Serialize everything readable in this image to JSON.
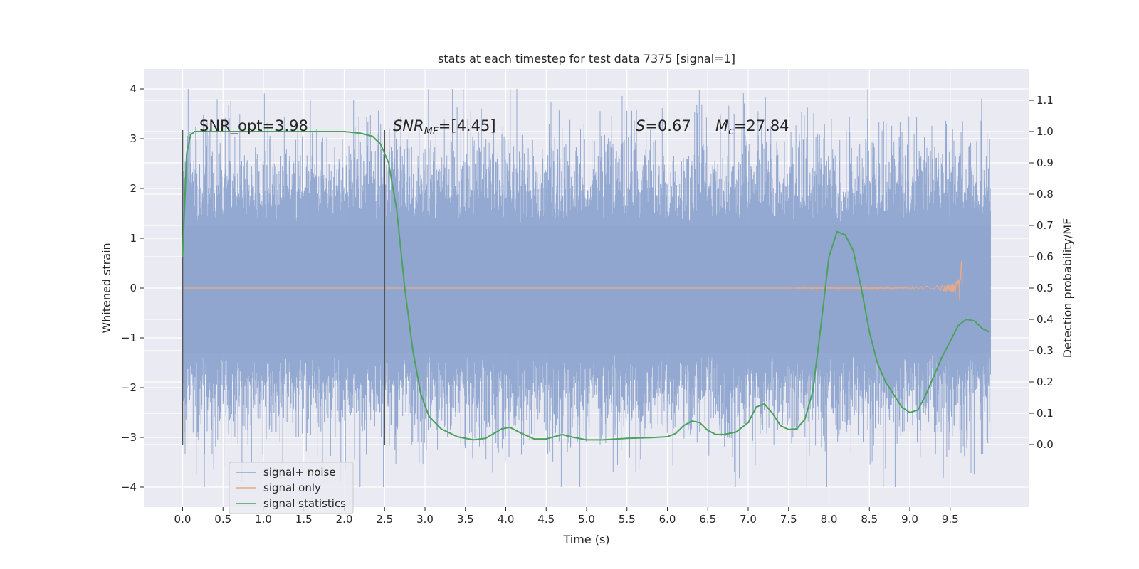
{
  "chart_data": {
    "type": "line",
    "title": "stats at each timestep for test data 7375 [signal=1]",
    "xlabel": "Time (s)",
    "ylabel": "Whitened strain",
    "ylabel_right": "Detection probability/MF",
    "xlim": [
      -0.48,
      10.48
    ],
    "ylim": [
      -4.4,
      4.4
    ],
    "ylim_right": [
      -0.2,
      1.2
    ],
    "x_ticks": [
      "0.0",
      "0.5",
      "1.0",
      "1.5",
      "2.0",
      "2.5",
      "3.0",
      "3.5",
      "4.0",
      "4.5",
      "5.0",
      "5.5",
      "6.0",
      "6.5",
      "7.0",
      "7.5",
      "8.0",
      "8.5",
      "9.0",
      "9.5"
    ],
    "y_ticks": [
      "−4",
      "−3",
      "−2",
      "−1",
      "0",
      "1",
      "2",
      "3",
      "4"
    ],
    "y_ticks_right": [
      "0.0",
      "0.1",
      "0.2",
      "0.3",
      "0.4",
      "0.5",
      "0.6",
      "0.7",
      "0.8",
      "0.9",
      "1.0",
      "1.1"
    ],
    "grid": true,
    "legend_position": "lower-left",
    "annotations": {
      "snr_opt": "SNR_opt=3.98",
      "snr_mf_sym": "SNR",
      "snr_mf_sub": "MF",
      "snr_mf_val": "=[4.45]",
      "s_sym": "S",
      "s_val": "=0.67",
      "mc_sym": "M",
      "mc_sub": "c",
      "mc_val": "=27.84"
    },
    "vlines_x": [
      0.0,
      2.5
    ],
    "series": [
      {
        "name": "signal+ noise",
        "color": "#8fa5cf",
        "x_range": [
          0.0,
          10.0
        ],
        "envelope_core": [
          -1.3,
          1.25
        ],
        "peak_range": [
          -4.0,
          4.0
        ]
      },
      {
        "name": "signal only",
        "color": "#e5a98c",
        "x_range": [
          0.0,
          9.65
        ],
        "peak_amplitude": 1.0,
        "merger_time": 9.65
      },
      {
        "name": "signal statistics",
        "color": "#4aa25b",
        "x": [
          0.0,
          0.05,
          0.1,
          0.15,
          0.2,
          0.3,
          0.5,
          1.0,
          1.5,
          2.0,
          2.2,
          2.35,
          2.45,
          2.55,
          2.65,
          2.75,
          2.85,
          2.95,
          3.05,
          3.2,
          3.4,
          3.6,
          3.75,
          3.85,
          3.95,
          4.05,
          4.2,
          4.35,
          4.5,
          4.6,
          4.7,
          4.8,
          5.0,
          5.2,
          5.5,
          5.8,
          6.0,
          6.1,
          6.2,
          6.3,
          6.4,
          6.5,
          6.6,
          6.7,
          6.85,
          7.0,
          7.1,
          7.2,
          7.3,
          7.4,
          7.5,
          7.6,
          7.7,
          7.8,
          7.9,
          8.0,
          8.1,
          8.2,
          8.3,
          8.4,
          8.5,
          8.6,
          8.7,
          8.8,
          8.9,
          9.0,
          9.1,
          9.2,
          9.3,
          9.4,
          9.5,
          9.6,
          9.7,
          9.8,
          9.9,
          9.98
        ],
        "y": [
          0.6,
          0.93,
          0.99,
          1.0,
          1.0,
          1.0,
          1.0,
          1.0,
          1.0,
          1.0,
          0.995,
          0.985,
          0.96,
          0.9,
          0.75,
          0.5,
          0.3,
          0.16,
          0.09,
          0.05,
          0.025,
          0.015,
          0.02,
          0.035,
          0.05,
          0.055,
          0.035,
          0.018,
          0.018,
          0.025,
          0.032,
          0.025,
          0.015,
          0.015,
          0.02,
          0.022,
          0.025,
          0.035,
          0.06,
          0.075,
          0.07,
          0.045,
          0.032,
          0.032,
          0.04,
          0.07,
          0.12,
          0.13,
          0.1,
          0.06,
          0.048,
          0.05,
          0.08,
          0.17,
          0.38,
          0.6,
          0.68,
          0.67,
          0.62,
          0.5,
          0.36,
          0.26,
          0.2,
          0.16,
          0.12,
          0.102,
          0.11,
          0.16,
          0.22,
          0.28,
          0.33,
          0.38,
          0.4,
          0.395,
          0.37,
          0.36
        ]
      }
    ]
  }
}
